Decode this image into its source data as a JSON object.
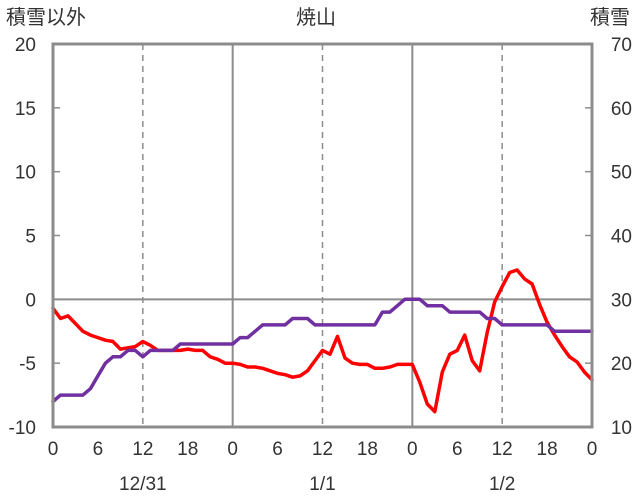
{
  "chart_data": {
    "type": "line",
    "title": "焼山",
    "left_axis_label": "積雪以外",
    "right_axis_label": "積雪",
    "ylim_left": [
      -10,
      20
    ],
    "ylim_right": [
      10,
      70
    ],
    "y_ticks_left": [
      20,
      15,
      10,
      5,
      0,
      -5,
      -10
    ],
    "y_ticks_right": [
      70,
      60,
      50,
      40,
      30,
      20,
      10
    ],
    "xlim": [
      0,
      72
    ],
    "x_ticks": [
      {
        "x": 0,
        "label": "0"
      },
      {
        "x": 6,
        "label": "6"
      },
      {
        "x": 12,
        "label": "12"
      },
      {
        "x": 18,
        "label": "18"
      },
      {
        "x": 24,
        "label": "0"
      },
      {
        "x": 30,
        "label": "6"
      },
      {
        "x": 36,
        "label": "12"
      },
      {
        "x": 42,
        "label": "18"
      },
      {
        "x": 48,
        "label": "0"
      },
      {
        "x": 54,
        "label": "6"
      },
      {
        "x": 60,
        "label": "12"
      },
      {
        "x": 66,
        "label": "18"
      },
      {
        "x": 72,
        "label": "0"
      }
    ],
    "date_labels": [
      {
        "x": 12,
        "label": "12/31"
      },
      {
        "x": 36,
        "label": "1/1"
      },
      {
        "x": 60,
        "label": "1/2"
      }
    ],
    "grid": {
      "solid_x": [
        24,
        48
      ],
      "dashed_x": [
        12,
        36,
        60
      ],
      "zero_line_left": 0
    },
    "series": [
      {
        "axis": "left",
        "color": "#ff0000",
        "points": [
          [
            0,
            -0.7
          ],
          [
            1,
            -1.5
          ],
          [
            2,
            -1.3
          ],
          [
            3,
            -1.9
          ],
          [
            4,
            -2.5
          ],
          [
            5,
            -2.8
          ],
          [
            6,
            -3.0
          ],
          [
            7,
            -3.2
          ],
          [
            8,
            -3.3
          ],
          [
            9,
            -3.9
          ],
          [
            10,
            -3.8
          ],
          [
            11,
            -3.7
          ],
          [
            12,
            -3.3
          ],
          [
            13,
            -3.6
          ],
          [
            14,
            -4.0
          ],
          [
            15,
            -4.0
          ],
          [
            16,
            -4.0
          ],
          [
            17,
            -4.0
          ],
          [
            18,
            -3.9
          ],
          [
            19,
            -4.0
          ],
          [
            20,
            -4.0
          ],
          [
            21,
            -4.5
          ],
          [
            22,
            -4.7
          ],
          [
            23,
            -5.0
          ],
          [
            24,
            -5.0
          ],
          [
            25,
            -5.1
          ],
          [
            26,
            -5.3
          ],
          [
            27,
            -5.3
          ],
          [
            28,
            -5.4
          ],
          [
            29,
            -5.6
          ],
          [
            30,
            -5.8
          ],
          [
            31,
            -5.9
          ],
          [
            32,
            -6.1
          ],
          [
            33,
            -6.0
          ],
          [
            34,
            -5.6
          ],
          [
            35,
            -4.8
          ],
          [
            36,
            -4.0
          ],
          [
            37,
            -4.3
          ],
          [
            38,
            -2.9
          ],
          [
            39,
            -4.6
          ],
          [
            40,
            -5.0
          ],
          [
            41,
            -5.1
          ],
          [
            42,
            -5.1
          ],
          [
            43,
            -5.4
          ],
          [
            44,
            -5.4
          ],
          [
            45,
            -5.3
          ],
          [
            46,
            -5.1
          ],
          [
            47,
            -5.1
          ],
          [
            48,
            -5.1
          ],
          [
            49,
            -6.5
          ],
          [
            50,
            -8.2
          ],
          [
            51,
            -8.8
          ],
          [
            52,
            -5.7
          ],
          [
            53,
            -4.3
          ],
          [
            54,
            -4.0
          ],
          [
            55,
            -2.8
          ],
          [
            56,
            -4.8
          ],
          [
            57,
            -5.6
          ],
          [
            58,
            -2.6
          ],
          [
            59,
            -0.2
          ],
          [
            60,
            1.0
          ],
          [
            61,
            2.1
          ],
          [
            62,
            2.3
          ],
          [
            63,
            1.6
          ],
          [
            64,
            1.2
          ],
          [
            65,
            -0.4
          ],
          [
            66,
            -1.8
          ],
          [
            67,
            -2.8
          ],
          [
            68,
            -3.7
          ],
          [
            69,
            -4.5
          ],
          [
            70,
            -4.9
          ],
          [
            71,
            -5.7
          ],
          [
            72,
            -6.3
          ]
        ]
      },
      {
        "axis": "right",
        "color": "#7030a0",
        "points": [
          [
            0,
            14
          ],
          [
            1,
            15
          ],
          [
            2,
            15
          ],
          [
            3,
            15
          ],
          [
            4,
            15
          ],
          [
            5,
            16
          ],
          [
            6,
            18
          ],
          [
            7,
            20
          ],
          [
            8,
            21
          ],
          [
            9,
            21
          ],
          [
            10,
            22
          ],
          [
            11,
            22
          ],
          [
            12,
            21
          ],
          [
            13,
            22
          ],
          [
            14,
            22
          ],
          [
            15,
            22
          ],
          [
            16,
            22
          ],
          [
            17,
            23
          ],
          [
            18,
            23
          ],
          [
            19,
            23
          ],
          [
            20,
            23
          ],
          [
            21,
            23
          ],
          [
            22,
            23
          ],
          [
            23,
            23
          ],
          [
            24,
            23
          ],
          [
            25,
            24
          ],
          [
            26,
            24
          ],
          [
            27,
            25
          ],
          [
            28,
            26
          ],
          [
            29,
            26
          ],
          [
            30,
            26
          ],
          [
            31,
            26
          ],
          [
            32,
            27
          ],
          [
            33,
            27
          ],
          [
            34,
            27
          ],
          [
            35,
            26
          ],
          [
            36,
            26
          ],
          [
            37,
            26
          ],
          [
            38,
            26
          ],
          [
            39,
            26
          ],
          [
            40,
            26
          ],
          [
            41,
            26
          ],
          [
            42,
            26
          ],
          [
            43,
            26
          ],
          [
            44,
            28
          ],
          [
            45,
            28
          ],
          [
            46,
            29
          ],
          [
            47,
            30
          ],
          [
            48,
            30
          ],
          [
            49,
            30
          ],
          [
            50,
            29
          ],
          [
            51,
            29
          ],
          [
            52,
            29
          ],
          [
            53,
            28
          ],
          [
            54,
            28
          ],
          [
            55,
            28
          ],
          [
            56,
            28
          ],
          [
            57,
            28
          ],
          [
            58,
            27
          ],
          [
            59,
            27
          ],
          [
            60,
            26
          ],
          [
            61,
            26
          ],
          [
            62,
            26
          ],
          [
            63,
            26
          ],
          [
            64,
            26
          ],
          [
            65,
            26
          ],
          [
            66,
            26
          ],
          [
            67,
            25
          ],
          [
            68,
            25
          ],
          [
            69,
            25
          ],
          [
            70,
            25
          ],
          [
            71,
            25
          ],
          [
            72,
            25
          ]
        ]
      }
    ]
  }
}
